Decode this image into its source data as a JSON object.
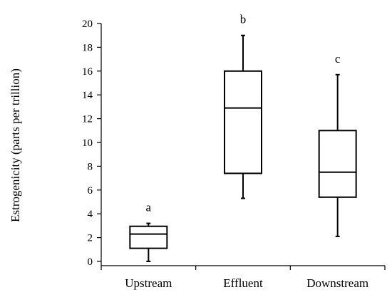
{
  "chart_data": {
    "type": "box",
    "ylabel": "Estrogenicity (parts per trillion)",
    "ylim": [
      0,
      20
    ],
    "yticks": [
      0,
      2,
      4,
      6,
      8,
      10,
      12,
      14,
      16,
      18,
      20
    ],
    "categories": [
      "Upstream",
      "Effluent",
      "Downstream"
    ],
    "boxes": [
      {
        "category": "Upstream",
        "min": 0.0,
        "q1": 1.1,
        "median": 2.3,
        "q3": 2.95,
        "max": 3.2,
        "significance": "a"
      },
      {
        "category": "Effluent",
        "min": 5.3,
        "q1": 7.4,
        "median": 12.9,
        "q3": 16.0,
        "max": 19.0,
        "significance": "b"
      },
      {
        "category": "Downstream",
        "min": 2.1,
        "q1": 5.4,
        "median": 7.5,
        "q3": 11.0,
        "max": 15.7,
        "significance": "c"
      }
    ],
    "grid": false,
    "legend": "none"
  }
}
